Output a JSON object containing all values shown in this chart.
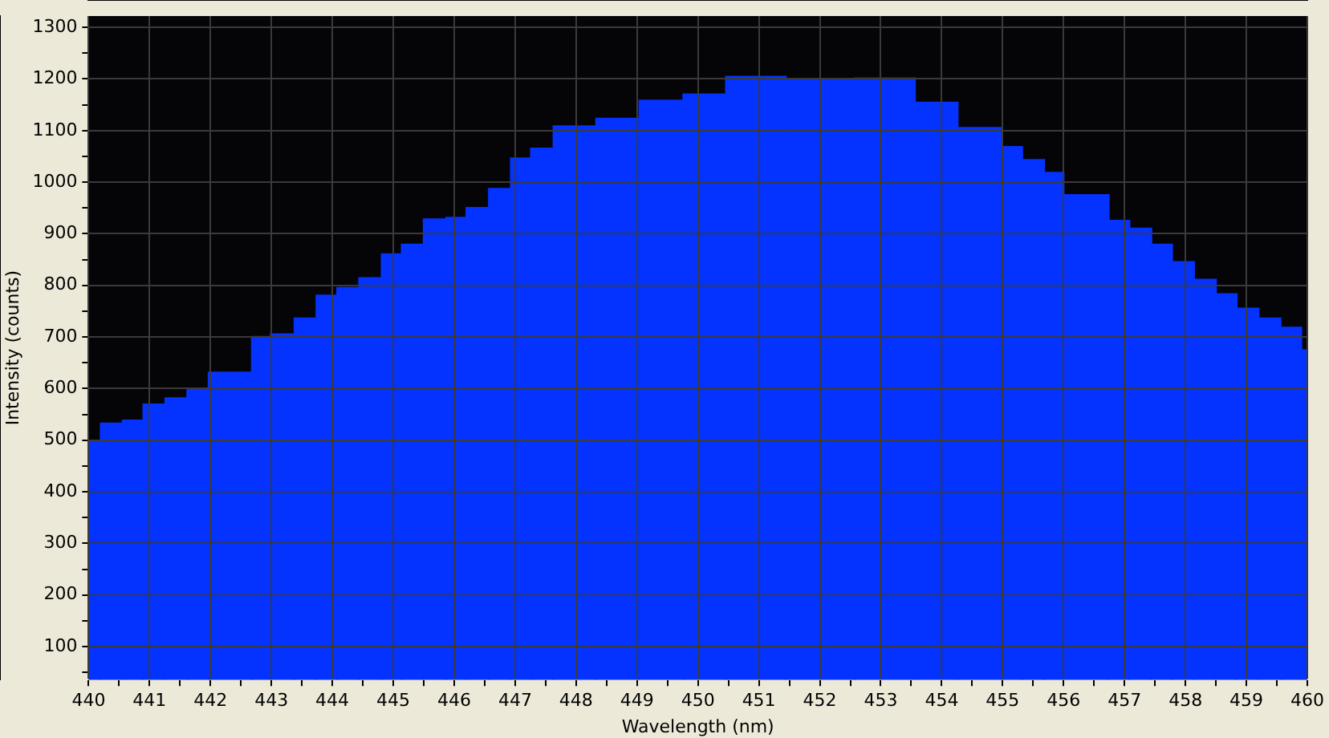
{
  "chart_data": {
    "type": "histogram",
    "xlabel": "Wavelength (nm)",
    "ylabel": "Intensity (counts)",
    "bins": [
      440.0,
      440.2,
      440.56,
      440.9,
      441.26,
      441.62,
      441.97,
      442.68,
      442.99,
      443.38,
      443.74,
      444.08,
      444.44,
      444.81,
      445.14,
      445.5,
      445.87,
      446.2,
      446.57,
      446.93,
      447.26,
      447.63,
      448.33,
      449.04,
      449.76,
      450.46,
      451.44,
      452.58,
      453.56,
      454.26,
      454.98,
      455.32,
      455.68,
      456.0,
      456.74,
      457.08,
      457.44,
      457.78,
      458.14,
      458.5,
      458.84,
      459.2,
      459.56,
      459.9,
      460.0
    ],
    "values": [
      498,
      533,
      539,
      570,
      582,
      598,
      632,
      701,
      706,
      737,
      781,
      796,
      815,
      861,
      880,
      929,
      932,
      951,
      988,
      1047,
      1066,
      1109,
      1124,
      1159,
      1171,
      1205,
      1198,
      1202,
      1155,
      1106,
      1069,
      1044,
      1019,
      976,
      926,
      911,
      880,
      846,
      812,
      784,
      756,
      737,
      719,
      675
    ],
    "color": "#0433ff",
    "xlim": [
      440,
      460
    ],
    "xticks": [
      440,
      {
        "value": 440.5,
        "label": null
      },
      441,
      {
        "value": 441.5,
        "label": null
      },
      442,
      {
        "value": 442.5,
        "label": null
      },
      443,
      {
        "value": 443.5,
        "label": null
      },
      444,
      {
        "value": 444.5,
        "label": null
      },
      445,
      {
        "value": 445.5,
        "label": null
      },
      446,
      {
        "value": 446.5,
        "label": null
      },
      447,
      {
        "value": 447.5,
        "label": null
      },
      448,
      {
        "value": 448.5,
        "label": null
      },
      449,
      {
        "value": 449.5,
        "label": null
      },
      450,
      {
        "value": 450.5,
        "label": null
      },
      451,
      {
        "value": 451.5,
        "label": null
      },
      452,
      {
        "value": 452.5,
        "label": null
      },
      453,
      {
        "value": 453.5,
        "label": null
      },
      454,
      {
        "value": 454.5,
        "label": null
      },
      455,
      {
        "value": 455.5,
        "label": null
      },
      456,
      {
        "value": 456.5,
        "label": null
      },
      457,
      {
        "value": 457.5,
        "label": null
      },
      458,
      {
        "value": 458.5,
        "label": null
      },
      459,
      {
        "value": 459.5,
        "label": null
      },
      460
    ],
    "ylim": [
      36,
      1322
    ],
    "yticks": [
      {
        "value": 50,
        "label": null
      },
      100,
      {
        "value": 150,
        "label": null
      },
      200,
      {
        "value": 250,
        "label": null
      },
      300,
      {
        "value": 350,
        "label": null
      },
      400,
      {
        "value": 450,
        "label": null
      },
      500,
      {
        "value": 550,
        "label": null
      },
      600,
      {
        "value": 650,
        "label": null
      },
      700,
      {
        "value": 750,
        "label": null
      },
      800,
      {
        "value": 850,
        "label": null
      },
      900,
      {
        "value": 950,
        "label": null
      },
      1000,
      {
        "value": 1050,
        "label": null
      },
      1100,
      {
        "value": 1150,
        "label": null
      },
      1200,
      {
        "value": 1250,
        "label": null
      },
      1300
    ],
    "grid": true,
    "legend": false
  }
}
